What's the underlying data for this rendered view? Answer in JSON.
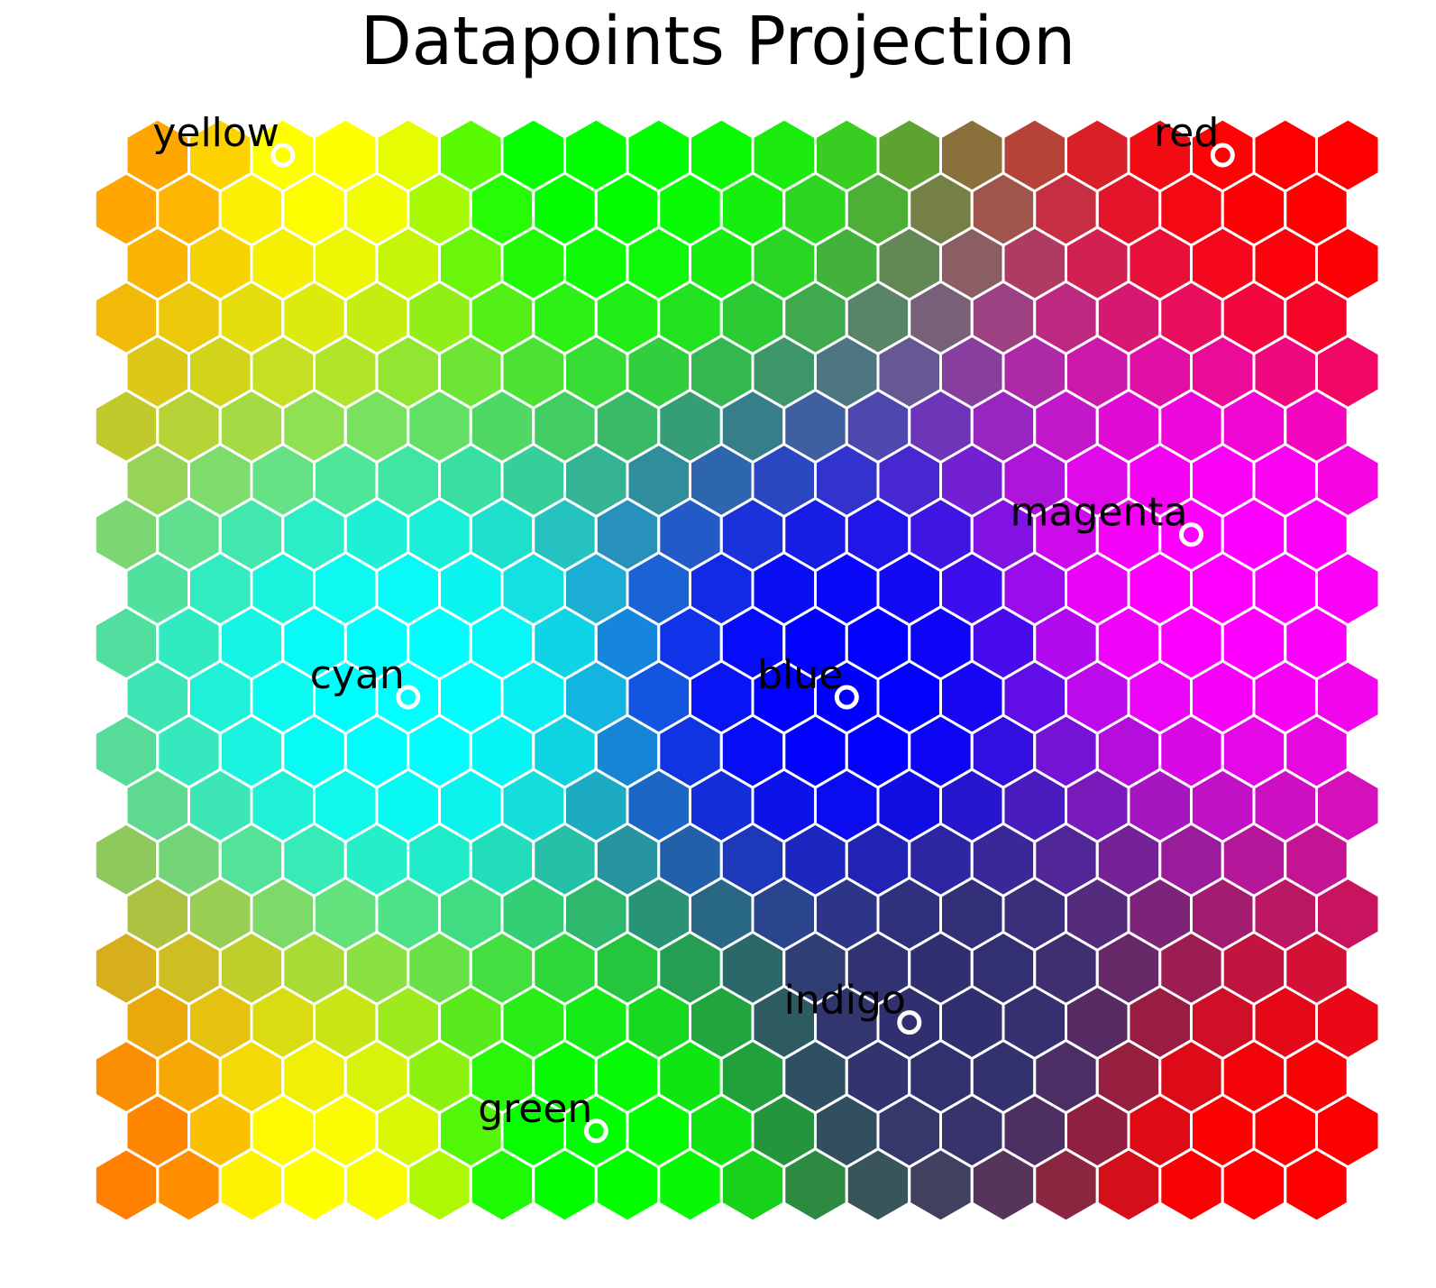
{
  "chart_data": {
    "type": "heatmap",
    "title": "Datapoints Projection",
    "grid": {
      "rows": 20,
      "cols": 20,
      "cell_shape": "hexagon",
      "edge_color": "#ffffff"
    },
    "anchor_colors": [
      "#ffa500",
      "#ffff00",
      "#00ff00",
      "#00ffff",
      "#0000ff",
      "#ff00ff",
      "#ff0000",
      "#303070",
      "#ff8000"
    ],
    "points": [
      {
        "label": "yellow",
        "color": "#ffff00",
        "col": 2.5,
        "row": 0
      },
      {
        "label": "red",
        "color": "#ff0000",
        "col": 17.5,
        "row": 0
      },
      {
        "label": "magenta",
        "color": "#ff00ff",
        "col": 17,
        "row": 7
      },
      {
        "label": "cyan",
        "color": "#00ffff",
        "col": 4.5,
        "row": 10
      },
      {
        "label": "blue",
        "color": "#0000ff",
        "col": 11.5,
        "row": 10
      },
      {
        "label": "indigo",
        "color": "#4b0082",
        "col": 12.5,
        "row": 16
      },
      {
        "label": "green",
        "color": "#00ff00",
        "col": 7.5,
        "row": 18
      }
    ]
  }
}
